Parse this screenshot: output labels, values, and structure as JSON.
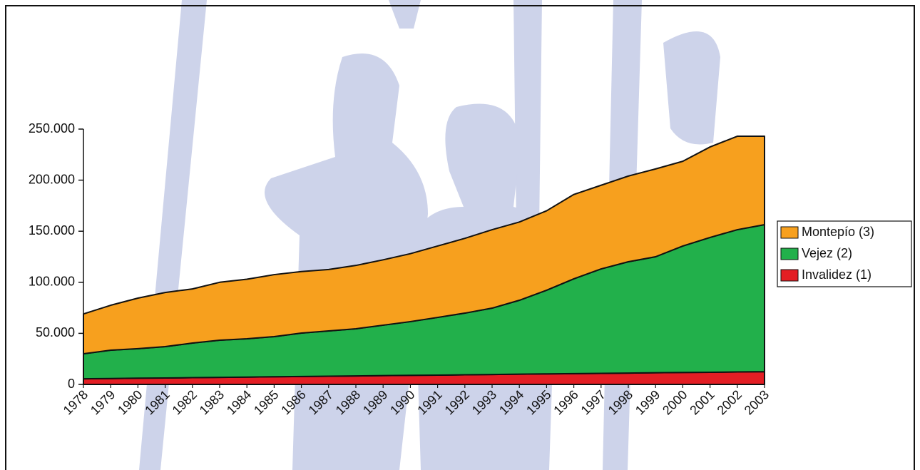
{
  "chart_data": {
    "type": "stacked-area",
    "categories": [
      "1978",
      "1979",
      "1980",
      "1981",
      "1982",
      "1983",
      "1984",
      "1985",
      "1986",
      "1987",
      "1988",
      "1989",
      "1990",
      "1991",
      "1992",
      "1993",
      "1994",
      "1995",
      "1996",
      "1997",
      "1998",
      "1999",
      "2000",
      "2001",
      "2002",
      "2003"
    ],
    "series": [
      {
        "name": "Invalidez (1)",
        "color": "#e31e24",
        "values": [
          5500,
          5800,
          6100,
          6300,
          6600,
          6900,
          7200,
          7500,
          7800,
          8000,
          8300,
          8600,
          8900,
          9100,
          9400,
          9700,
          10000,
          10300,
          10600,
          10800,
          11100,
          11400,
          11700,
          11900,
          12200,
          12500
        ]
      },
      {
        "name": "Vejez (2)",
        "color": "#22b04b",
        "values": [
          24500,
          27700,
          28900,
          30700,
          33900,
          36400,
          37500,
          39300,
          42500,
          44400,
          46200,
          49400,
          52600,
          56500,
          60400,
          65000,
          72400,
          81900,
          92800,
          102300,
          109000,
          113600,
          123800,
          132000,
          139300,
          143900
        ]
      },
      {
        "name": "Montepío (3)",
        "color": "#f7a01e",
        "values": [
          39000,
          44000,
          49500,
          53000,
          53000,
          56700,
          58300,
          60700,
          60200,
          60100,
          62000,
          64000,
          66500,
          69900,
          73200,
          76800,
          76600,
          77800,
          82600,
          81900,
          83900,
          86000,
          83000,
          88600,
          91500,
          86600
        ]
      }
    ],
    "ylim": [
      0,
      250000
    ],
    "yticks": [
      0,
      {
        "value": 50000,
        "label": "50.000"
      },
      {
        "value": 100000,
        "label": "100.000"
      },
      {
        "value": 150000,
        "label": "150.000"
      },
      {
        "value": 200000,
        "label": "200.000"
      },
      {
        "value": 250000,
        "label": "250.000"
      }
    ],
    "legend": "right"
  }
}
